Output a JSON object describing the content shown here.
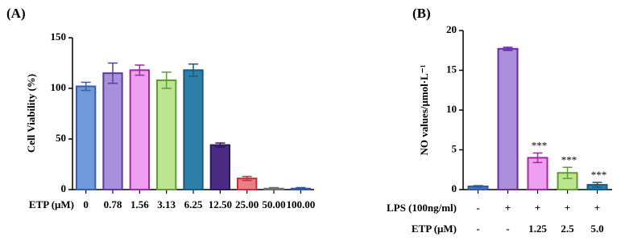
{
  "chart_data": [
    {
      "type": "bar",
      "title": "(A)",
      "ylabel": "Cell Viability (%)",
      "xlabel": "ETP (μM)",
      "categories": [
        "0",
        "0.78",
        "1.56",
        "3.13",
        "6.25",
        "12.50",
        "25.00",
        "50.00",
        "100.00"
      ],
      "values": [
        102,
        115,
        118,
        108,
        118,
        44,
        11,
        1,
        1
      ],
      "errors": [
        4,
        10,
        5,
        8,
        6,
        2,
        2,
        1,
        1
      ],
      "colors": [
        "#7099dc",
        "#a98fdc",
        "#ef9ff0",
        "#bde48f",
        "#2c7fa6",
        "#4b2c84",
        "#ec7f85",
        "#b0b0b0",
        "#5a86c8"
      ],
      "edge_colors": [
        "#3b5ea6",
        "#5b3c9c",
        "#a326a6",
        "#5e9c34",
        "#1b5a7e",
        "#2e1660",
        "#c0323c",
        "#707070",
        "#2f5a9c"
      ],
      "ylim": [
        0,
        150
      ],
      "yticks": [
        0,
        50,
        100,
        150
      ]
    },
    {
      "type": "bar",
      "title": "(B)",
      "ylabel": "NO values/μmol·L⁻¹",
      "categories": [
        null,
        null,
        null,
        null,
        null
      ],
      "values": [
        0.4,
        17.7,
        4.0,
        2.1,
        0.6
      ],
      "errors": [
        0.1,
        0.2,
        0.6,
        0.7,
        0.3
      ],
      "annotations": [
        null,
        null,
        "***",
        "***",
        "***"
      ],
      "colors": [
        "#4a78c8",
        "#a98fdc",
        "#ef9ff0",
        "#bde48f",
        "#2c7fa6"
      ],
      "edge_colors": [
        "#2f5a9c",
        "#6a2aa0",
        "#a326a6",
        "#5e9c34",
        "#1b5a7e"
      ],
      "x_table": [
        {
          "label": "LPS (100ng/ml)",
          "values": [
            "-",
            "+",
            "+",
            "+",
            "+"
          ]
        },
        {
          "label": "ETP (μM)",
          "values": [
            "-",
            "-",
            "1.25",
            "2.5",
            "5.0"
          ]
        }
      ],
      "ylim": [
        0,
        20
      ],
      "yticks": [
        0,
        5,
        10,
        15,
        20
      ]
    }
  ]
}
